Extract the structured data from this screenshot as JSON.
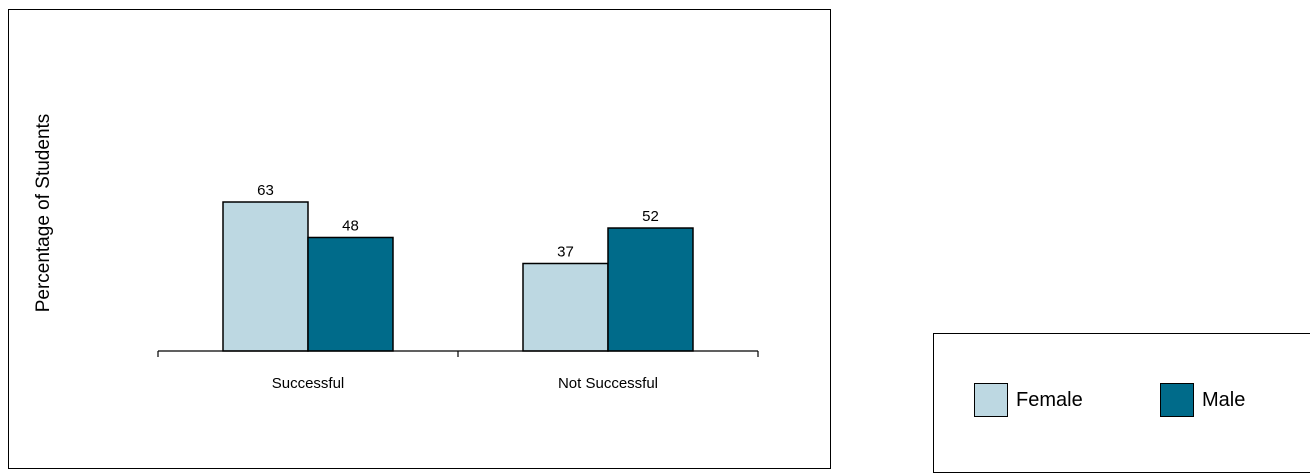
{
  "chart_data": {
    "type": "bar",
    "categories": [
      "Successful",
      "Not Successful"
    ],
    "series": [
      {
        "name": "Female",
        "values": [
          63,
          37
        ],
        "color": "#BDD8E2"
      },
      {
        "name": "Male",
        "values": [
          48,
          52
        ],
        "color": "#006B8A"
      }
    ],
    "ylabel": "Percentage of Students",
    "xlabel": "",
    "title": "",
    "ylim": [
      0,
      100
    ],
    "grid": false,
    "legend_position": "bottom-right",
    "data_labels": true
  }
}
